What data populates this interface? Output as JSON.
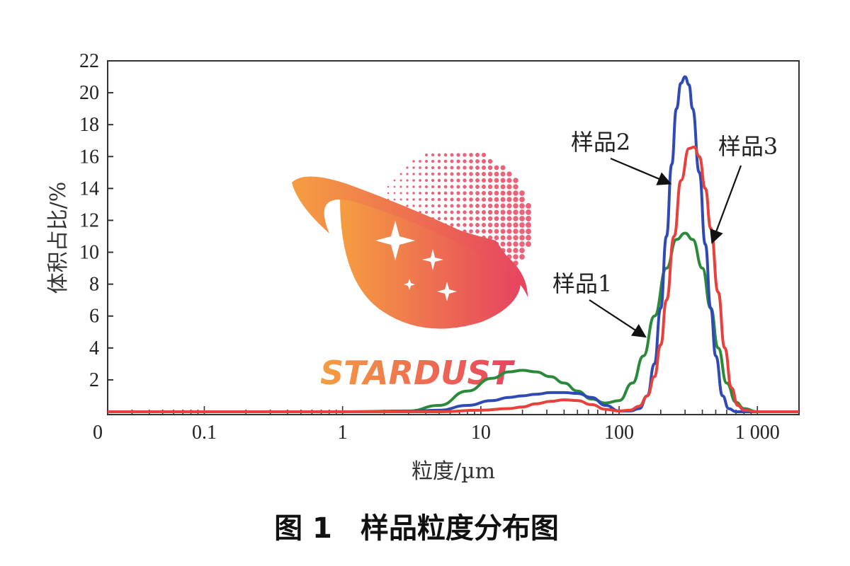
{
  "chart_data": {
    "type": "line",
    "xlabel": "粒度/µm",
    "ylabel": "体积占比/%",
    "x_scale": "log",
    "x_range": [
      0.02,
      2000
    ],
    "ylim": [
      0,
      22
    ],
    "y_ticks": [
      2,
      4,
      6,
      8,
      10,
      12,
      14,
      16,
      18,
      20,
      22
    ],
    "x_tick_labels": [
      {
        "value": 0.1,
        "label": "0.1"
      },
      {
        "value": 1,
        "label": "1"
      },
      {
        "value": 10,
        "label": "10"
      },
      {
        "value": 100,
        "label": "100"
      },
      {
        "value": 1000,
        "label": "1 000"
      }
    ],
    "origin_label": "0",
    "grid": false,
    "series": [
      {
        "name": "样品1",
        "color": "#2a8a3a",
        "x": [
          0.02,
          1,
          3,
          5,
          8,
          12,
          16,
          20,
          25,
          32,
          40,
          50,
          63,
          80,
          100,
          125,
          150,
          180,
          220,
          260,
          300,
          340,
          400,
          460,
          520,
          600,
          700,
          800,
          1000,
          2000
        ],
        "y": [
          0,
          0,
          0.05,
          0.4,
          1.3,
          2.1,
          2.5,
          2.6,
          2.5,
          2.2,
          1.8,
          1.3,
          0.8,
          0.55,
          0.7,
          1.8,
          3.5,
          6,
          9,
          10.8,
          11.2,
          10.8,
          9,
          6.5,
          4,
          1.8,
          0.6,
          0.2,
          0,
          0
        ]
      },
      {
        "name": "样品2",
        "color": "#2f49b5",
        "x": [
          0.02,
          1,
          3,
          5,
          8,
          12,
          16,
          20,
          25,
          32,
          40,
          50,
          63,
          80,
          100,
          120,
          140,
          160,
          180,
          200,
          220,
          240,
          260,
          280,
          300,
          320,
          340,
          380,
          420,
          460,
          500,
          560,
          620,
          700,
          1000,
          2000
        ],
        "y": [
          0,
          0,
          0.02,
          0.1,
          0.4,
          0.7,
          0.9,
          1.0,
          1.1,
          1.2,
          1.2,
          1.15,
          0.9,
          0.4,
          0.05,
          0.05,
          0.2,
          1.0,
          3.0,
          6.5,
          11,
          15.5,
          19,
          20.6,
          21,
          20.5,
          19,
          15,
          10.5,
          6.5,
          3.5,
          1,
          0.2,
          0,
          0,
          0
        ]
      },
      {
        "name": "样品3",
        "color": "#e8403a",
        "x": [
          0.02,
          1,
          5,
          10,
          16,
          20,
          25,
          32,
          40,
          50,
          63,
          80,
          100,
          120,
          140,
          160,
          180,
          200,
          220,
          250,
          280,
          320,
          350,
          380,
          420,
          460,
          520,
          580,
          650,
          720,
          800,
          1000,
          2000
        ],
        "y": [
          0,
          0,
          0,
          0.1,
          0.2,
          0.3,
          0.5,
          0.65,
          0.75,
          0.7,
          0.45,
          0.15,
          0.05,
          0.1,
          0.35,
          1.0,
          2.2,
          4.2,
          7,
          11,
          14.5,
          16.5,
          16.6,
          16,
          14,
          11.5,
          7.5,
          4,
          1.5,
          0.4,
          0.1,
          0,
          0
        ]
      }
    ],
    "annotations": [
      {
        "label": "样品1",
        "series": "样品1"
      },
      {
        "label": "样品2",
        "series": "样品2"
      },
      {
        "label": "样品3",
        "series": "样品3"
      }
    ],
    "caption": "图 1　样品粒度分布图"
  },
  "watermark": {
    "text": "STARDUST",
    "colors": [
      "#f5a03a",
      "#e8405a"
    ]
  }
}
